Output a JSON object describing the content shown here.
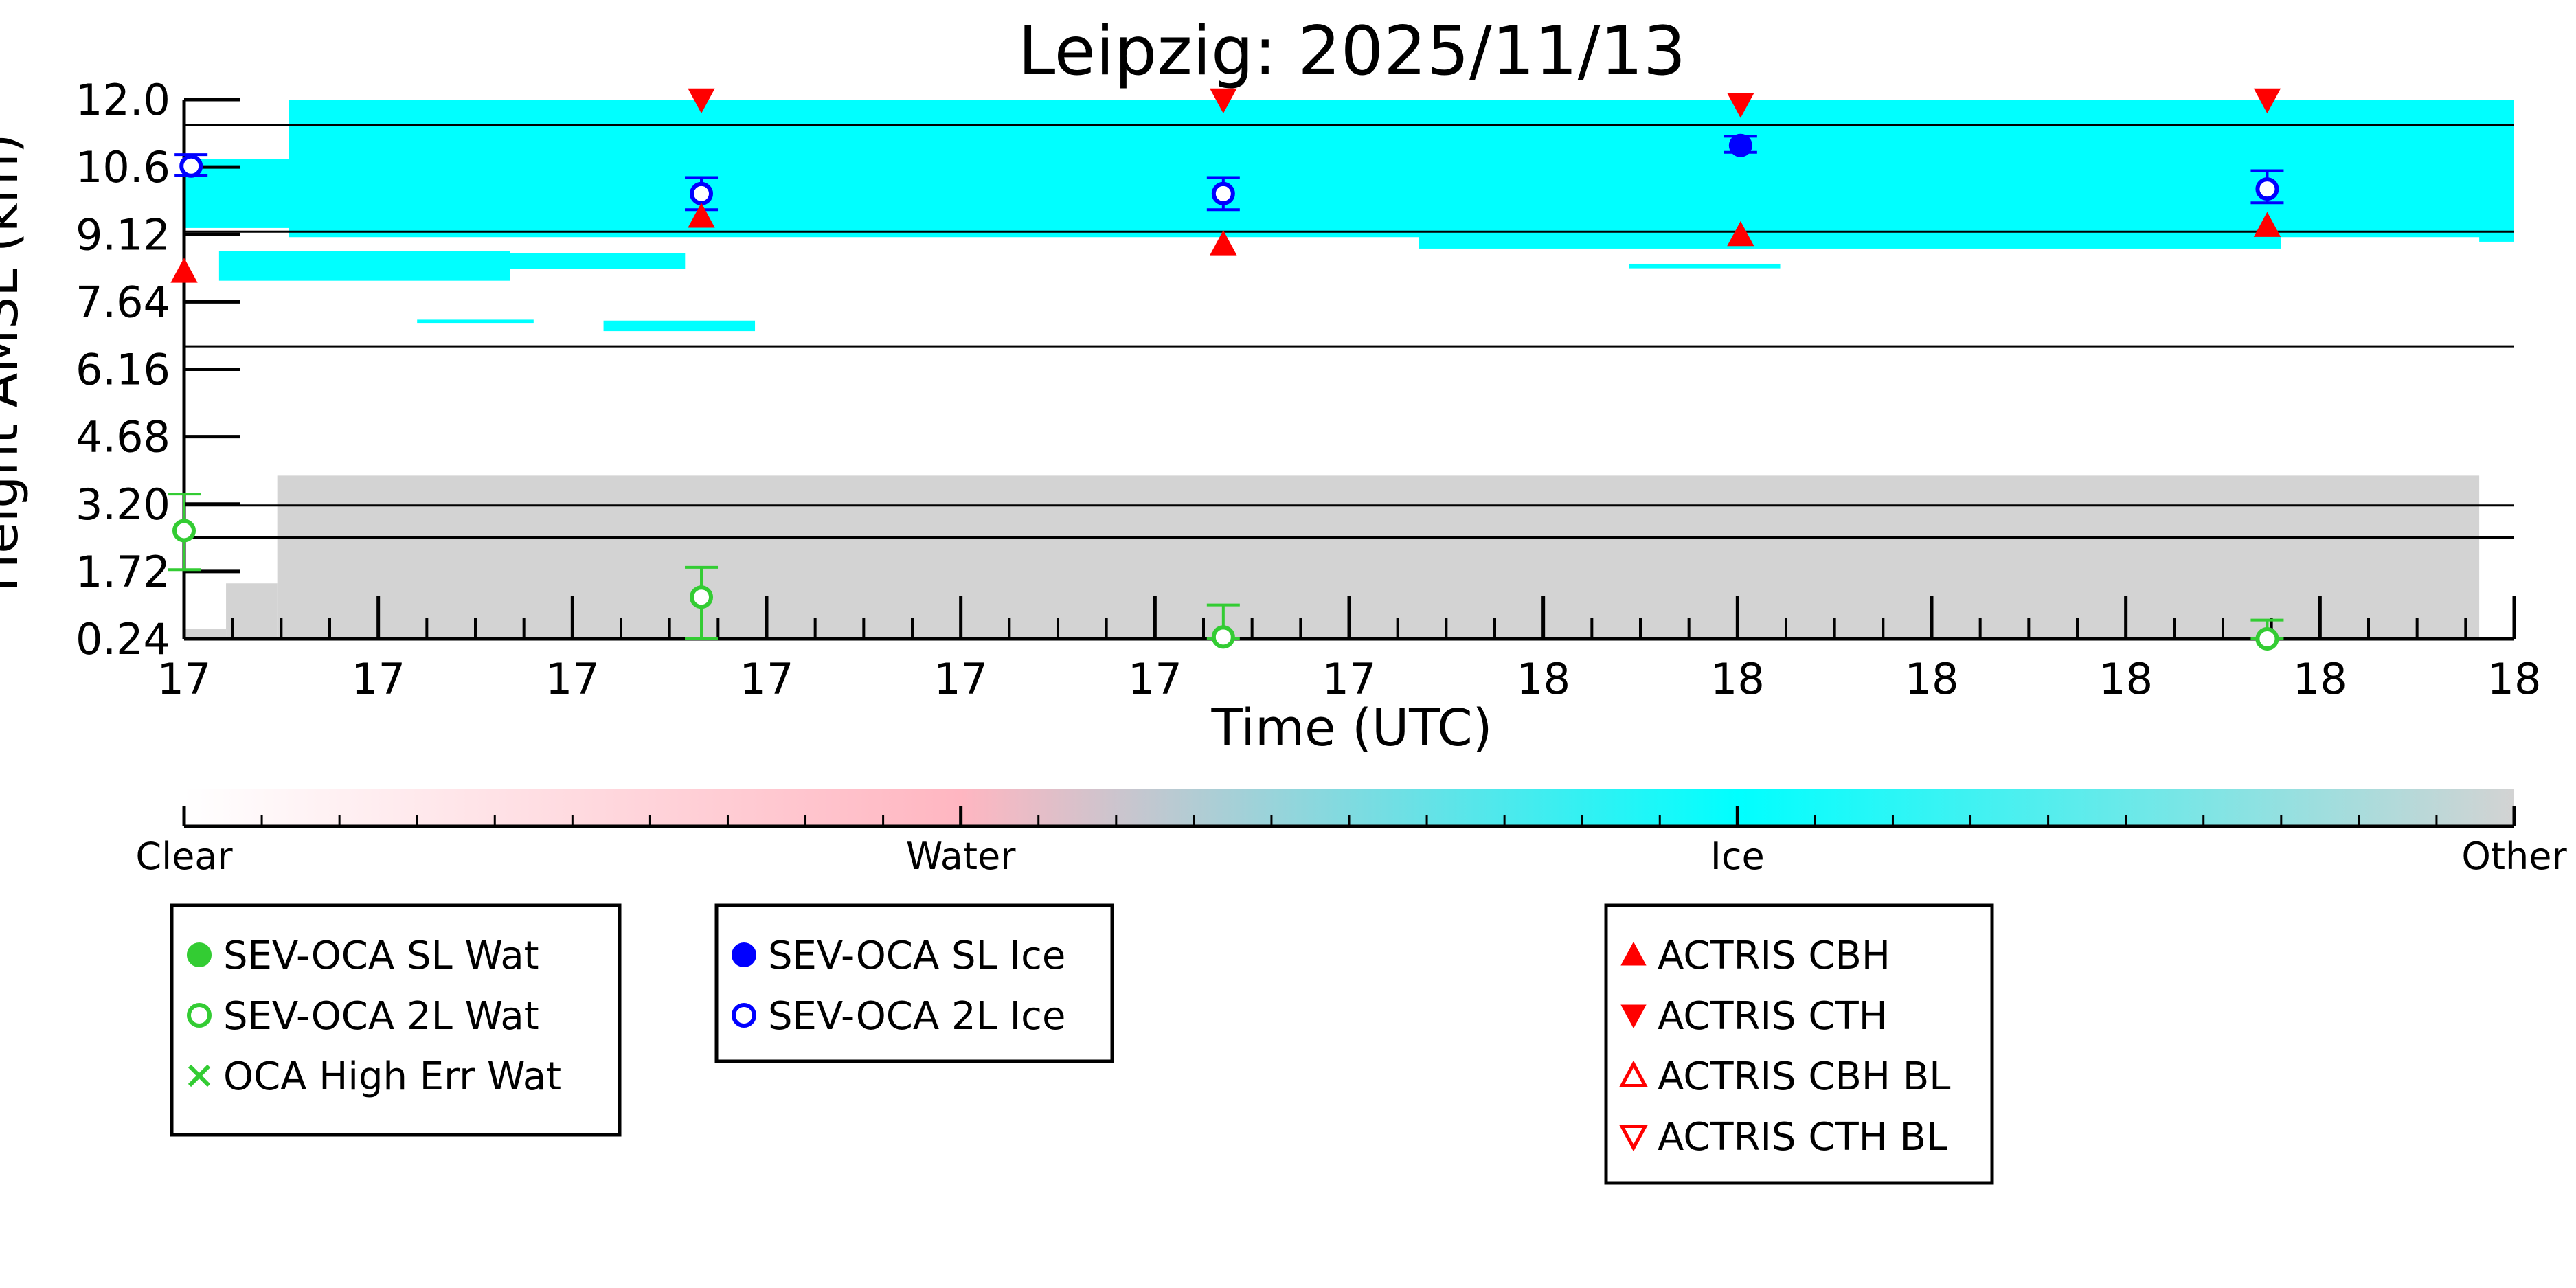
{
  "chart_data": {
    "type": "heatmap",
    "title": "Leipzig: 2025/11/13",
    "xlabel": "Time (UTC)",
    "ylabel": "Height AMSL (km)",
    "ylim": [
      0.24,
      12.0
    ],
    "y_ticks": [
      "0.24",
      "1.72",
      "3.20",
      "4.68",
      "6.16",
      "7.64",
      "9.12",
      "10.6",
      "12.0"
    ],
    "x_ticks": [
      "17",
      "17",
      "17",
      "17",
      "17",
      "17",
      "17",
      "18",
      "18",
      "18",
      "18",
      "18",
      "18"
    ],
    "colorbar": {
      "labels": [
        "Clear",
        "Water",
        "Ice",
        "Other"
      ],
      "colors": [
        "#ffffff",
        "#ffb6c1",
        "#00ffff",
        "#d3d3d3"
      ]
    },
    "class_colors": {
      "ice": "#00ffff",
      "other": "#d3d3d3"
    },
    "cloud_regions": [
      {
        "class": "ice",
        "t0": 0,
        "t1": 0.045,
        "h0": 9.2,
        "h1": 10.7
      },
      {
        "class": "ice",
        "t0": 0.045,
        "t1": 1.0,
        "h0": 9.0,
        "h1": 12.0
      },
      {
        "class": "ice",
        "t0": 0.015,
        "t1": 0.14,
        "h0": 8.05,
        "h1": 8.7
      },
      {
        "class": "ice",
        "t0": 0.14,
        "t1": 0.215,
        "h0": 8.3,
        "h1": 8.65
      },
      {
        "class": "ice",
        "t0": 0.53,
        "t1": 0.9,
        "h0": 8.75,
        "h1": 9.2
      },
      {
        "class": "ice",
        "t0": 0.985,
        "t1": 1.0,
        "h0": 8.9,
        "h1": 9.4
      },
      {
        "class": "ice",
        "t0": 0.1,
        "t1": 0.15,
        "h0": 7.13,
        "h1": 7.2
      },
      {
        "class": "ice",
        "t0": 0.18,
        "t1": 0.245,
        "h0": 6.95,
        "h1": 7.18
      },
      {
        "class": "ice",
        "t0": 0.62,
        "t1": 0.685,
        "h0": 8.32,
        "h1": 8.42
      },
      {
        "class": "other",
        "t0": 0.0,
        "t1": 0.018,
        "h0": 0.24,
        "h1": 0.45
      },
      {
        "class": "other",
        "t0": 0.018,
        "t1": 0.04,
        "h0": 0.24,
        "h1": 1.45
      },
      {
        "class": "other",
        "t0": 0.04,
        "t1": 0.985,
        "h0": 0.24,
        "h1": 3.8
      }
    ],
    "horizontal_lines_km": [
      11.45,
      9.12,
      6.62,
      3.15,
      2.45
    ],
    "series": [
      {
        "name": "SEV-OCA SL Wat",
        "marker": "circle-filled",
        "color": "#33cc33",
        "points": []
      },
      {
        "name": "SEV-OCA 2L Wat",
        "marker": "circle-open",
        "color": "#33cc33",
        "points": [
          {
            "t": 0.0,
            "h": 2.6,
            "lo": 1.75,
            "hi": 3.4
          },
          {
            "t": 0.222,
            "h": 1.15,
            "lo": 0.25,
            "hi": 1.8
          },
          {
            "t": 0.446,
            "h": 0.28,
            "lo": 0.24,
            "hi": 0.98
          },
          {
            "t": 0.894,
            "h": 0.24,
            "lo": 0.24,
            "hi": 0.65
          }
        ]
      },
      {
        "name": "OCA High Err Wat",
        "marker": "x",
        "color": "#33cc33",
        "points": []
      },
      {
        "name": "SEV-OCA SL Ice",
        "marker": "circle-filled",
        "color": "#0000ff",
        "points": [
          {
            "t": 0.668,
            "h": 11.0,
            "lo": 10.85,
            "hi": 11.2
          }
        ]
      },
      {
        "name": "SEV-OCA 2L Ice",
        "marker": "circle-open",
        "color": "#0000ff",
        "points": [
          {
            "t": 0.003,
            "h": 10.55,
            "lo": 10.35,
            "hi": 10.8
          },
          {
            "t": 0.222,
            "h": 9.95,
            "lo": 9.6,
            "hi": 10.3
          },
          {
            "t": 0.446,
            "h": 9.95,
            "lo": 9.6,
            "hi": 10.3
          },
          {
            "t": 0.894,
            "h": 10.05,
            "lo": 9.75,
            "hi": 10.45
          }
        ]
      },
      {
        "name": "ACTRIS CBH",
        "marker": "triangle-up-filled",
        "color": "#ff0000",
        "points": [
          {
            "t": 0.0,
            "h": 8.25
          },
          {
            "t": 0.222,
            "h": 9.45
          },
          {
            "t": 0.446,
            "h": 8.85
          },
          {
            "t": 0.668,
            "h": 9.05
          },
          {
            "t": 0.894,
            "h": 9.25
          }
        ]
      },
      {
        "name": "ACTRIS CTH",
        "marker": "triangle-down-filled",
        "color": "#ff0000",
        "points": [
          {
            "t": 0.222,
            "h": 12.0
          },
          {
            "t": 0.446,
            "h": 12.0
          },
          {
            "t": 0.668,
            "h": 11.9
          },
          {
            "t": 0.894,
            "h": 12.0
          }
        ]
      },
      {
        "name": "ACTRIS CBH BL",
        "marker": "triangle-up-open",
        "color": "#ff0000",
        "points": []
      },
      {
        "name": "ACTRIS CTH BL",
        "marker": "triangle-down-open",
        "color": "#ff0000",
        "points": []
      }
    ],
    "legend_groups": [
      [
        "SEV-OCA SL Wat",
        "SEV-OCA 2L Wat",
        "OCA High Err Wat"
      ],
      [
        "SEV-OCA SL Ice",
        "SEV-OCA 2L Ice"
      ],
      [
        "ACTRIS CBH",
        "ACTRIS CTH",
        "ACTRIS CBH BL",
        "ACTRIS CTH BL"
      ]
    ]
  }
}
